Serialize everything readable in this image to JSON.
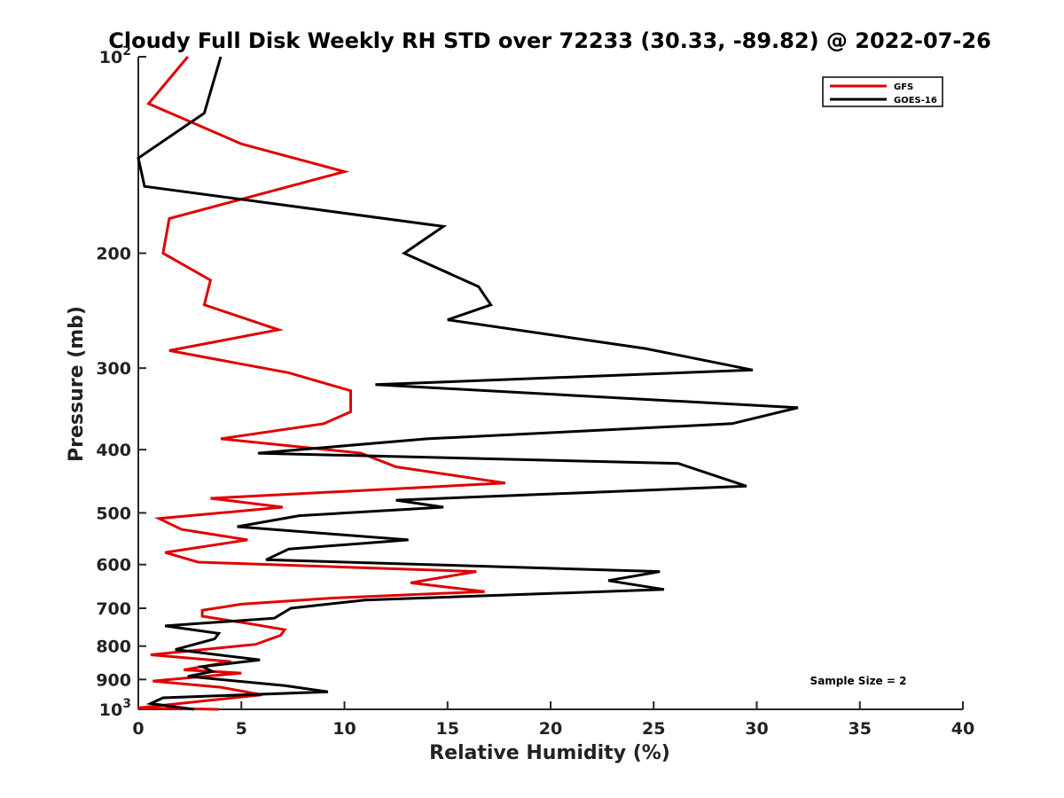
{
  "chart_data": {
    "type": "line",
    "title": "Cloudy Full Disk Weekly RH STD over 72233 (30.33, -89.82) @ 2022-07-26",
    "xlabel": "Relative Humidity (%)",
    "ylabel": "Pressure (mb)",
    "xlim": [
      0,
      40
    ],
    "ylim": [
      100,
      1000
    ],
    "yscale": "log",
    "y_reversed": true,
    "grid": false,
    "legend_position": "top-right",
    "x_ticks": [
      {
        "value": 0,
        "label": "0"
      },
      {
        "value": 5,
        "label": "5"
      },
      {
        "value": 10,
        "label": "10"
      },
      {
        "value": 15,
        "label": "15"
      },
      {
        "value": 20,
        "label": "20"
      },
      {
        "value": 25,
        "label": "25"
      },
      {
        "value": 30,
        "label": "30"
      },
      {
        "value": 35,
        "label": "35"
      },
      {
        "value": 40,
        "label": "40"
      }
    ],
    "y_ticks": [
      {
        "value": 100,
        "label": "10",
        "sup": "2"
      },
      {
        "value": 200,
        "label": "200"
      },
      {
        "value": 300,
        "label": "300"
      },
      {
        "value": 400,
        "label": "400"
      },
      {
        "value": 500,
        "label": "500"
      },
      {
        "value": 600,
        "label": "600"
      },
      {
        "value": 700,
        "label": "700"
      },
      {
        "value": 800,
        "label": "800"
      },
      {
        "value": 900,
        "label": "900"
      },
      {
        "value": 1000,
        "label": "10",
        "sup": "3"
      }
    ],
    "annotation": "Sample Size = 2",
    "series": [
      {
        "name": "GFS",
        "color": "#e00000",
        "points": [
          [
            2.4,
            100
          ],
          [
            0.5,
            118
          ],
          [
            5.0,
            136
          ],
          [
            10.0,
            150
          ],
          [
            1.5,
            177
          ],
          [
            1.2,
            200
          ],
          [
            3.5,
            220
          ],
          [
            3.2,
            240
          ],
          [
            6.8,
            262
          ],
          [
            1.5,
            282
          ],
          [
            7.3,
            305
          ],
          [
            10.3,
            325
          ],
          [
            10.3,
            350
          ],
          [
            9.0,
            365
          ],
          [
            4.0,
            385
          ],
          [
            10.8,
            405
          ],
          [
            12.5,
            425
          ],
          [
            17.8,
            450
          ],
          [
            3.5,
            475
          ],
          [
            7.0,
            490
          ],
          [
            1.0,
            510
          ],
          [
            2.1,
            530
          ],
          [
            5.3,
            550
          ],
          [
            1.3,
            575
          ],
          [
            2.9,
            595
          ],
          [
            16.4,
            615
          ],
          [
            13.2,
            640
          ],
          [
            16.8,
            660
          ],
          [
            9.5,
            675
          ],
          [
            5.0,
            690
          ],
          [
            3.1,
            705
          ],
          [
            3.1,
            720
          ],
          [
            5.5,
            740
          ],
          [
            7.1,
            755
          ],
          [
            6.9,
            770
          ],
          [
            5.7,
            795
          ],
          [
            0.6,
            825
          ],
          [
            4.5,
            845
          ],
          [
            2.2,
            870
          ],
          [
            5.0,
            880
          ],
          [
            0.7,
            905
          ],
          [
            4.0,
            925
          ],
          [
            6.0,
            950
          ],
          [
            0.0,
            995
          ],
          [
            3.9,
            1000
          ]
        ]
      },
      {
        "name": "GOES-16",
        "color": "#000000",
        "points": [
          [
            4.0,
            100
          ],
          [
            3.2,
            122
          ],
          [
            0.0,
            143
          ],
          [
            0.3,
            158
          ],
          [
            14.8,
            182
          ],
          [
            12.9,
            200
          ],
          [
            16.5,
            225
          ],
          [
            17.1,
            240
          ],
          [
            15.0,
            253
          ],
          [
            24.6,
            280
          ],
          [
            29.8,
            302
          ],
          [
            11.5,
            318
          ],
          [
            32.0,
            345
          ],
          [
            28.8,
            365
          ],
          [
            14.0,
            385
          ],
          [
            5.8,
            405
          ],
          [
            26.2,
            420
          ],
          [
            29.5,
            455
          ],
          [
            12.5,
            478
          ],
          [
            14.8,
            490
          ],
          [
            7.8,
            505
          ],
          [
            4.8,
            525
          ],
          [
            13.1,
            550
          ],
          [
            7.3,
            568
          ],
          [
            6.2,
            590
          ],
          [
            25.3,
            615
          ],
          [
            22.8,
            635
          ],
          [
            25.5,
            655
          ],
          [
            11.0,
            680
          ],
          [
            7.4,
            700
          ],
          [
            6.6,
            725
          ],
          [
            1.3,
            745
          ],
          [
            3.9,
            765
          ],
          [
            3.7,
            780
          ],
          [
            1.8,
            810
          ],
          [
            5.9,
            840
          ],
          [
            3.1,
            860
          ],
          [
            3.6,
            875
          ],
          [
            2.4,
            890
          ],
          [
            7.1,
            920
          ],
          [
            9.2,
            940
          ],
          [
            1.2,
            960
          ],
          [
            0.6,
            980
          ],
          [
            2.7,
            1000
          ]
        ]
      }
    ]
  }
}
